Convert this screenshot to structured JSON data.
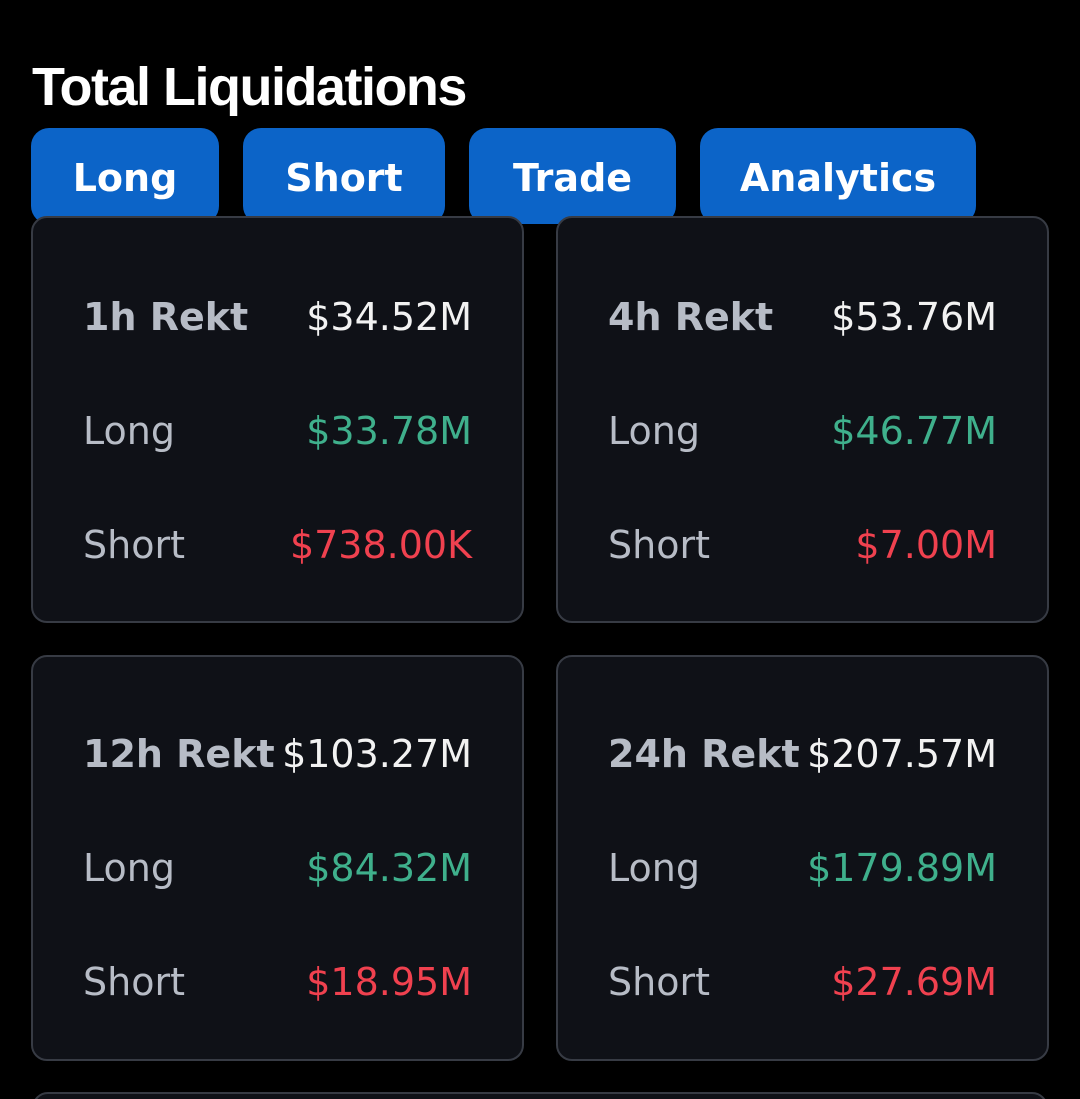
{
  "title": "Total Liquidations",
  "tabs": [
    "Long",
    "Short",
    "Trade",
    "Analytics"
  ],
  "cards": [
    {
      "period_label": "1h Rekt",
      "total": "$34.52M",
      "long_label": "Long",
      "long_value": "$33.78M",
      "short_label": "Short",
      "short_value": "$738.00K"
    },
    {
      "period_label": "4h Rekt",
      "total": "$53.76M",
      "long_label": "Long",
      "long_value": "$46.77M",
      "short_label": "Short",
      "short_value": "$7.00M"
    },
    {
      "period_label": "12h Rekt",
      "total": "$103.27M",
      "long_label": "Long",
      "long_value": "$84.32M",
      "short_label": "Short",
      "short_value": "$18.95M"
    },
    {
      "period_label": "24h Rekt",
      "total": "$207.57M",
      "long_label": "Long",
      "long_value": "$179.89M",
      "short_label": "Short",
      "short_value": "$27.69M"
    }
  ],
  "colors": {
    "background": "#000000",
    "card": "#0f1117",
    "tab": "#0c64c8",
    "long": "#3fb08c",
    "short": "#f0414f"
  }
}
